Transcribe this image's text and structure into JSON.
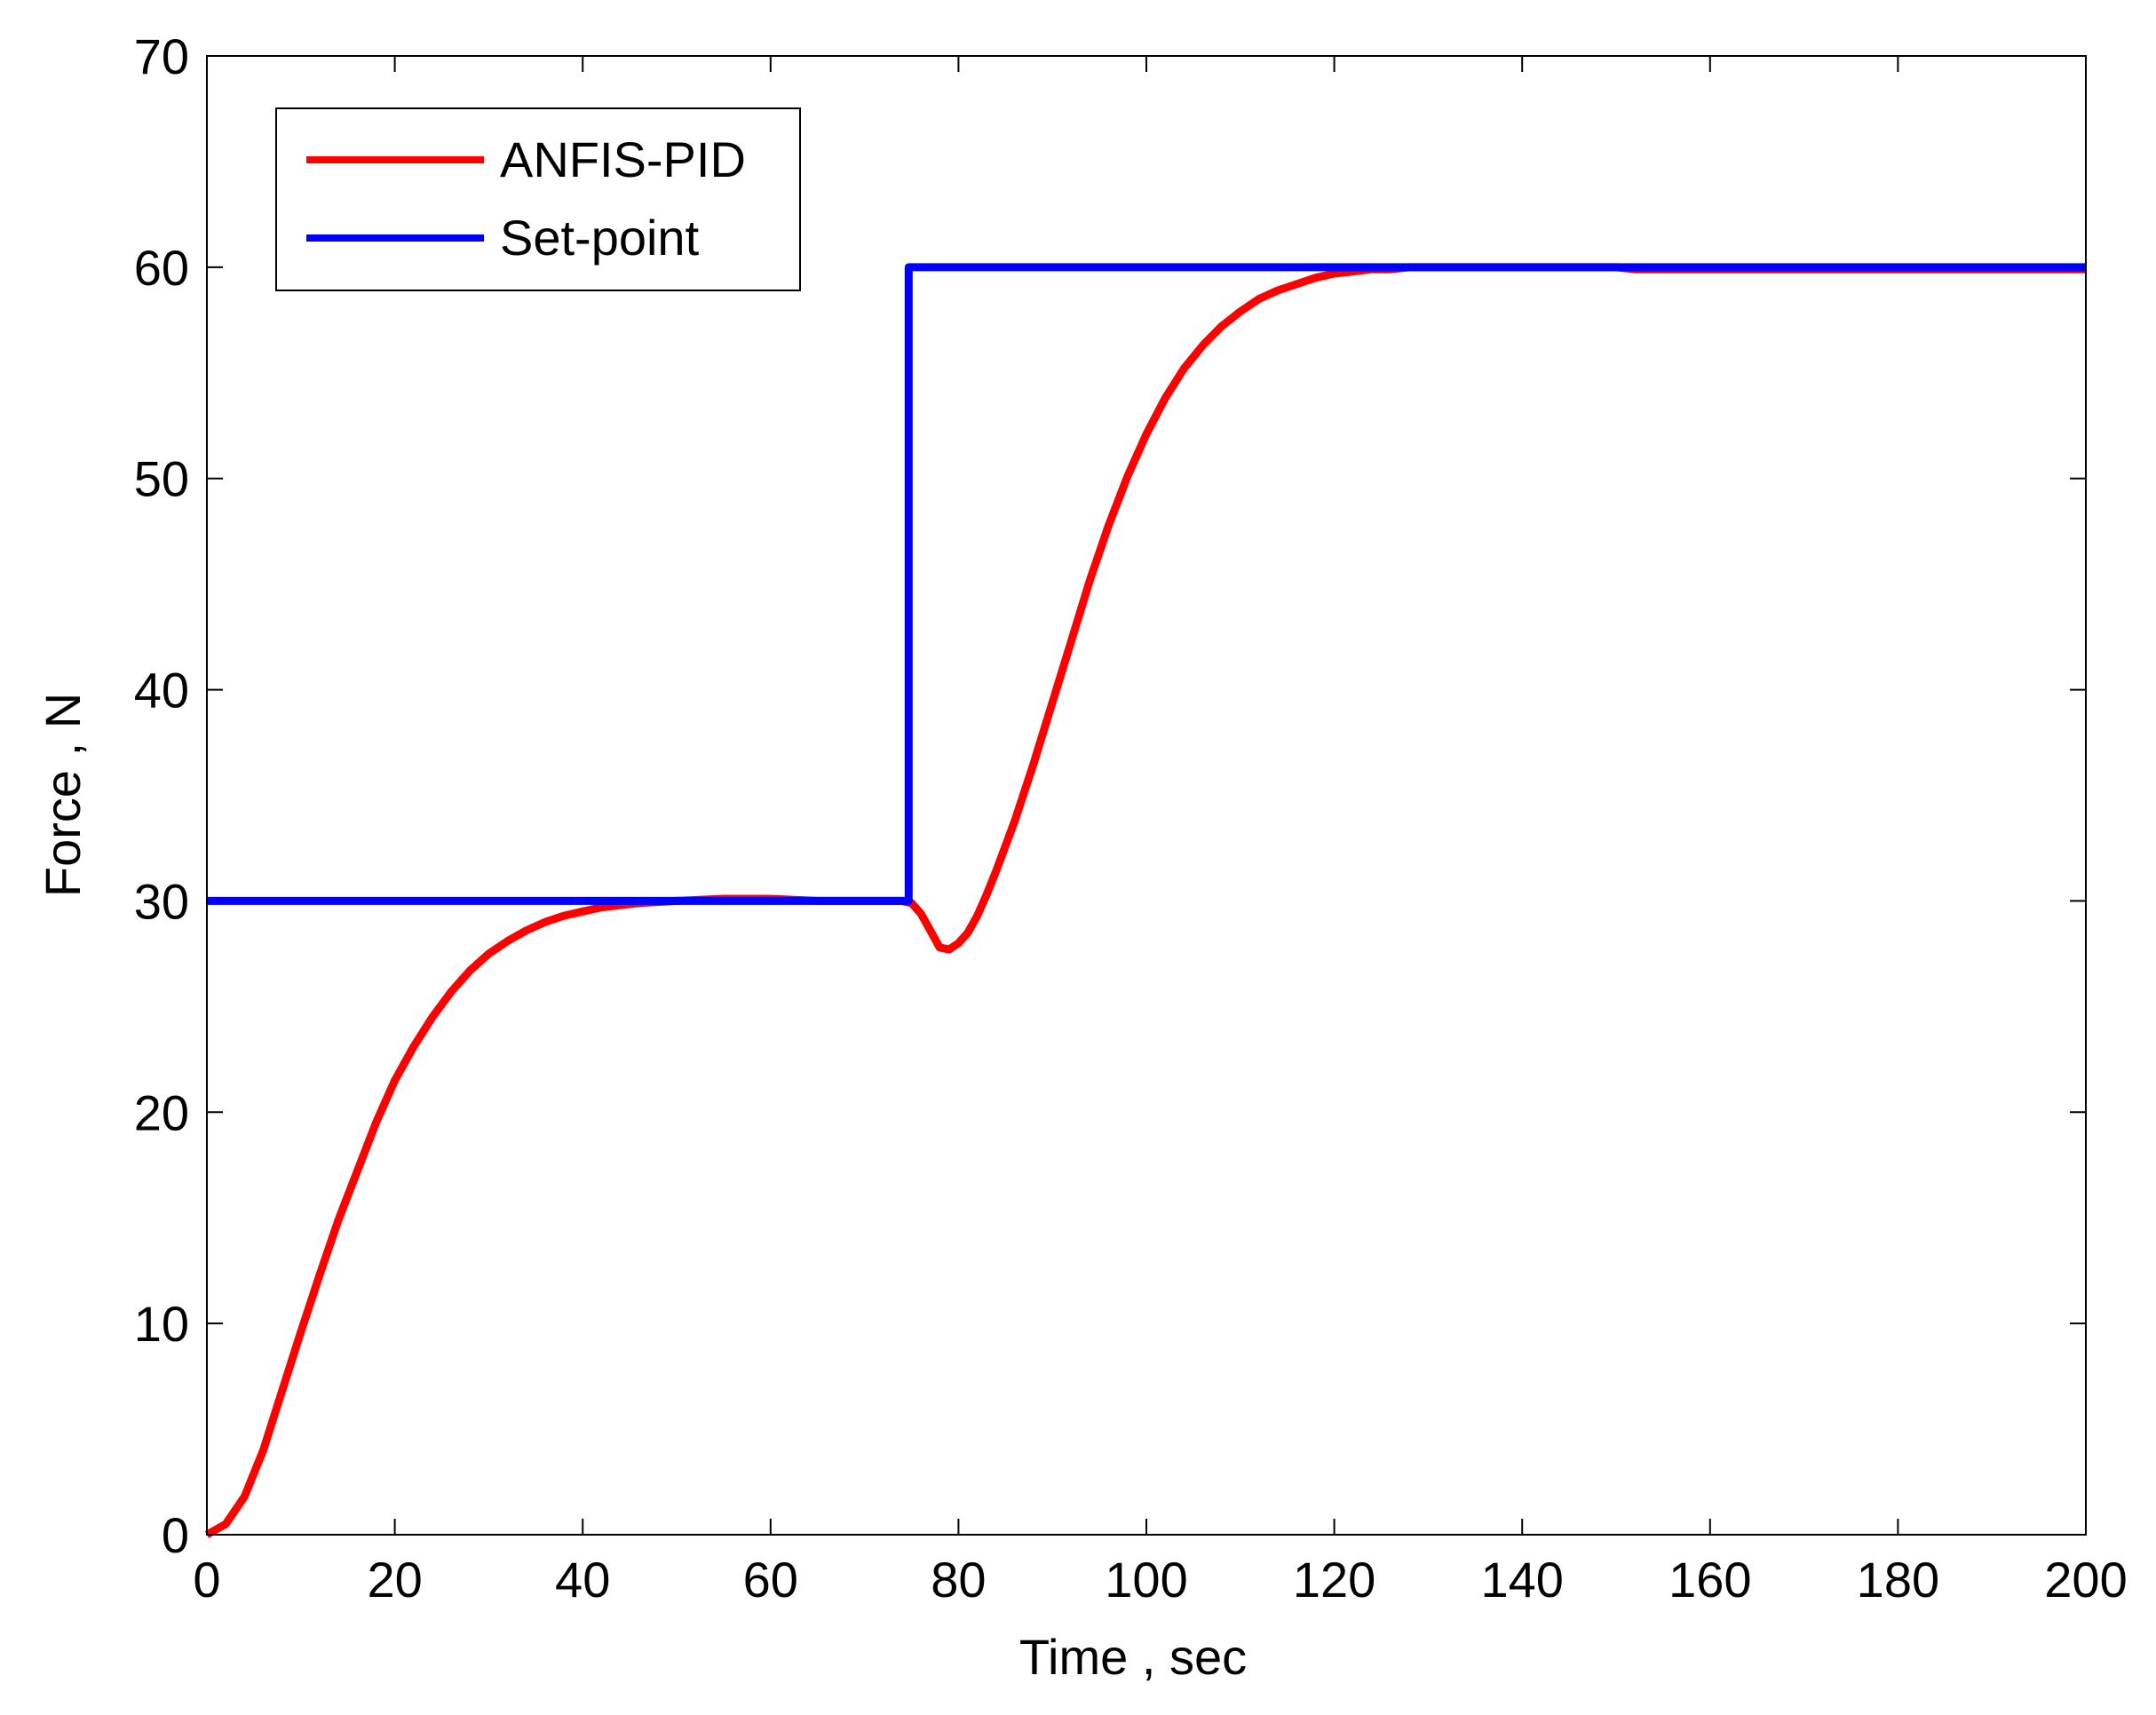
{
  "chart_data": {
    "type": "line",
    "xlabel": "Time , sec",
    "ylabel": "Force  , N",
    "xlim": [
      0,
      200
    ],
    "ylim": [
      0,
      70
    ],
    "xticks": [
      0,
      20,
      40,
      60,
      80,
      100,
      120,
      140,
      160,
      180,
      200
    ],
    "yticks": [
      0,
      10,
      20,
      30,
      40,
      50,
      60,
      70
    ],
    "grid": false,
    "legend_position": "top-left",
    "series": [
      {
        "name": "ANFIS-PID",
        "color": "#ff0000",
        "x": [
          0,
          2,
          4,
          6,
          8,
          10,
          12,
          14,
          16,
          18,
          20,
          22,
          24,
          26,
          28,
          30,
          32,
          34,
          36,
          38,
          40,
          42,
          44,
          46,
          50,
          55,
          60,
          65,
          70,
          74,
          75,
          76,
          77,
          78,
          79,
          80,
          81,
          82,
          83,
          84,
          86,
          88,
          90,
          92,
          94,
          96,
          98,
          100,
          102,
          104,
          106,
          108,
          110,
          112,
          114,
          116,
          118,
          120,
          122,
          124,
          126,
          128,
          130,
          140,
          150,
          152,
          160,
          170,
          180,
          190,
          200
        ],
        "y": [
          0,
          0.5,
          1.8,
          4.0,
          6.8,
          9.6,
          12.3,
          14.9,
          17.2,
          19.5,
          21.5,
          23.1,
          24.5,
          25.7,
          26.7,
          27.5,
          28.1,
          28.6,
          29.0,
          29.3,
          29.5,
          29.7,
          29.8,
          29.9,
          30.0,
          30.1,
          30.1,
          30.0,
          30.0,
          30.0,
          29.9,
          29.4,
          28.6,
          27.8,
          27.7,
          28.0,
          28.5,
          29.3,
          30.3,
          31.4,
          33.8,
          36.5,
          39.4,
          42.3,
          45.2,
          47.8,
          50.1,
          52.1,
          53.8,
          55.2,
          56.3,
          57.2,
          57.9,
          58.5,
          58.9,
          59.2,
          59.5,
          59.7,
          59.8,
          59.9,
          59.9,
          60.0,
          60.0,
          60.0,
          60.0,
          59.9,
          59.9,
          59.9,
          59.9,
          59.9,
          59.9
        ]
      },
      {
        "name": "Set-point",
        "color": "#0000ff",
        "x": [
          0,
          74.7,
          74.7,
          200
        ],
        "y": [
          30,
          30,
          60,
          60
        ]
      }
    ]
  }
}
